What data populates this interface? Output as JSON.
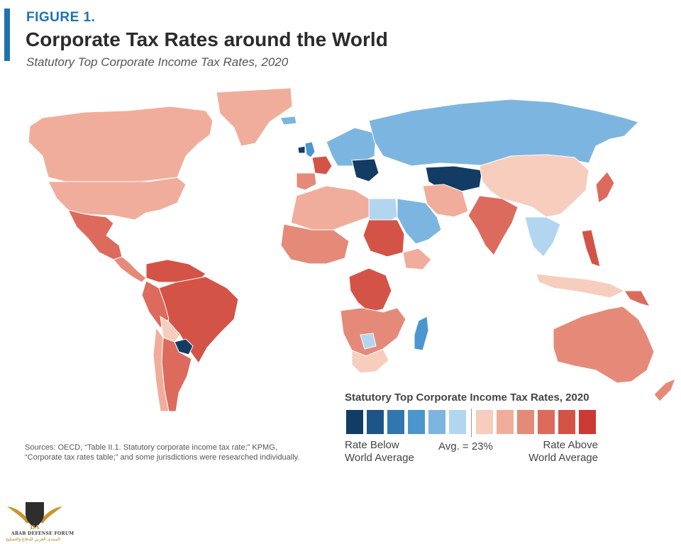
{
  "header": {
    "figure_label": "FIGURE 1.",
    "title": "Corporate Tax Rates around the World",
    "subtitle": "Statutory Top Corporate Income Tax Rates, 2020",
    "accent_color": "#1f72b0"
  },
  "legend": {
    "title": "Statutory Top Corporate Income Tax Rates, 2020",
    "swatches": [
      "#123c64",
      "#1d5588",
      "#3077b1",
      "#4b96cf",
      "#7cb6e0",
      "#b3d6f0",
      "#f7cdbe",
      "#f1ad9b",
      "#e58a79",
      "#dc6b5d",
      "#d45347",
      "#cc3a35"
    ],
    "low_label_1": "Rate Below",
    "low_label_2": "World Average",
    "avg_label": "Avg. = 23%",
    "high_label_1": "Rate Above",
    "high_label_2": "World Average"
  },
  "map_data": {
    "regions": [
      {
        "name": "Greenland",
        "color": "#f1ad9b"
      },
      {
        "name": "Canada",
        "color": "#f1ad9b"
      },
      {
        "name": "United States",
        "color": "#f1ad9b"
      },
      {
        "name": "Mexico",
        "color": "#dc6b5d"
      },
      {
        "name": "Central America",
        "color": "#e58a79"
      },
      {
        "name": "South America North",
        "color": "#d45347"
      },
      {
        "name": "Brazil",
        "color": "#d45347"
      },
      {
        "name": "Peru",
        "color": "#dc6b5d"
      },
      {
        "name": "Bolivia",
        "color": "#f7cdbe"
      },
      {
        "name": "Paraguay",
        "color": "#123c64"
      },
      {
        "name": "Chile",
        "color": "#f1ad9b"
      },
      {
        "name": "Argentina",
        "color": "#dc6b5d"
      },
      {
        "name": "Iceland",
        "color": "#7cb6e0"
      },
      {
        "name": "United Kingdom",
        "color": "#4b96cf"
      },
      {
        "name": "Ireland",
        "color": "#123c64"
      },
      {
        "name": "France",
        "color": "#d45347"
      },
      {
        "name": "Iberia",
        "color": "#e58a79"
      },
      {
        "name": "Central Europe",
        "color": "#7cb6e0"
      },
      {
        "name": "Balkans",
        "color": "#123c64"
      },
      {
        "name": "Russia",
        "color": "#7cb6e0"
      },
      {
        "name": "Central Asia",
        "color": "#123c64"
      },
      {
        "name": "China",
        "color": "#f7cdbe"
      },
      {
        "name": "Japan",
        "color": "#dc6b5d"
      },
      {
        "name": "India",
        "color": "#dc6b5d"
      },
      {
        "name": "Middle East",
        "color": "#7cb6e0"
      },
      {
        "name": "Iran",
        "color": "#f1ad9b"
      },
      {
        "name": "Southeast Asia",
        "color": "#b3d6f0"
      },
      {
        "name": "Philippines",
        "color": "#d45347"
      },
      {
        "name": "Indonesia",
        "color": "#f7cdbe"
      },
      {
        "name": "Papua New Guinea",
        "color": "#dc6b5d"
      },
      {
        "name": "Australia",
        "color": "#e58a79"
      },
      {
        "name": "New Zealand",
        "color": "#e58a79"
      },
      {
        "name": "North Africa",
        "color": "#f1ad9b"
      },
      {
        "name": "Egypt",
        "color": "#b3d6f0"
      },
      {
        "name": "West Africa",
        "color": "#e58a79"
      },
      {
        "name": "Sudan",
        "color": "#d45347"
      },
      {
        "name": "Ethiopia",
        "color": "#f1ad9b"
      },
      {
        "name": "DR Congo",
        "color": "#d45347"
      },
      {
        "name": "Southern Africa",
        "color": "#e58a79"
      },
      {
        "name": "South Africa",
        "color": "#f7cdbe"
      },
      {
        "name": "Botswana",
        "color": "#b3d6f0"
      },
      {
        "name": "Madagascar",
        "color": "#4b96cf"
      }
    ]
  },
  "sources": {
    "line1": "Sources: OECD, “Table II.1. Statutory corporate income tax rate;” KPMG,",
    "line2": "“Corporate tax rates table;” and some jurisdictions were researched individually."
  },
  "watermark": {
    "text1": "ARAB DEFENSE FORUM",
    "text2": "المنتدى العربي للدفاع والتسليح",
    "gold": "#c9962a",
    "dark": "#2e2e2e"
  }
}
